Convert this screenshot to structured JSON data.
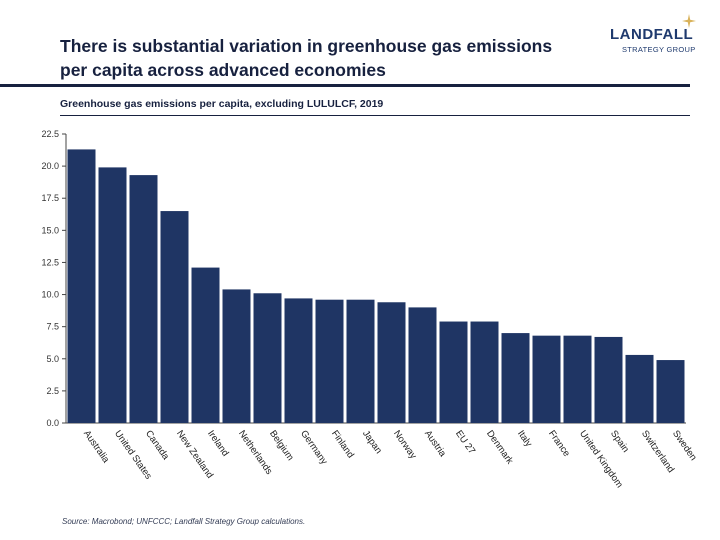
{
  "header": {
    "title": "There is substantial variation in greenhouse gas emissions per capita across advanced economies"
  },
  "logo": {
    "name": "LANDFALL",
    "tagline": "STRATEGY GROUP",
    "icon": "star-icon",
    "color": "#1f3a6e",
    "star_color": "#d9b25a"
  },
  "subtitle": "Greenhouse gas emissions per capita, excluding LULULCF, 2019",
  "source": "Source: Macrobond; UNFCCC; Landfall Strategy Group calculations.",
  "chart_data": {
    "type": "bar",
    "categories": [
      "Australia",
      "United States",
      "Canada",
      "New Zealand",
      "Ireland",
      "Netherlands",
      "Belgium",
      "Germany",
      "Finland",
      "Japan",
      "Norway",
      "Austria",
      "EU 27",
      "Denmark",
      "Italy",
      "France",
      "United Kingdom",
      "Spain",
      "Switzerland",
      "Sweden"
    ],
    "values": [
      21.3,
      19.9,
      19.3,
      16.5,
      12.1,
      10.4,
      10.1,
      9.7,
      9.6,
      9.6,
      9.4,
      9.0,
      7.9,
      7.9,
      7.0,
      6.8,
      6.8,
      6.7,
      5.3,
      4.9
    ],
    "yticks": [
      "0.0",
      "2.5",
      "5.0",
      "7.5",
      "10.0",
      "12.5",
      "15.0",
      "17.5",
      "20.0",
      "22.5"
    ],
    "ylim": [
      0,
      22.5
    ],
    "bar_color": "#1f3564",
    "grid": false,
    "legend": "none"
  }
}
